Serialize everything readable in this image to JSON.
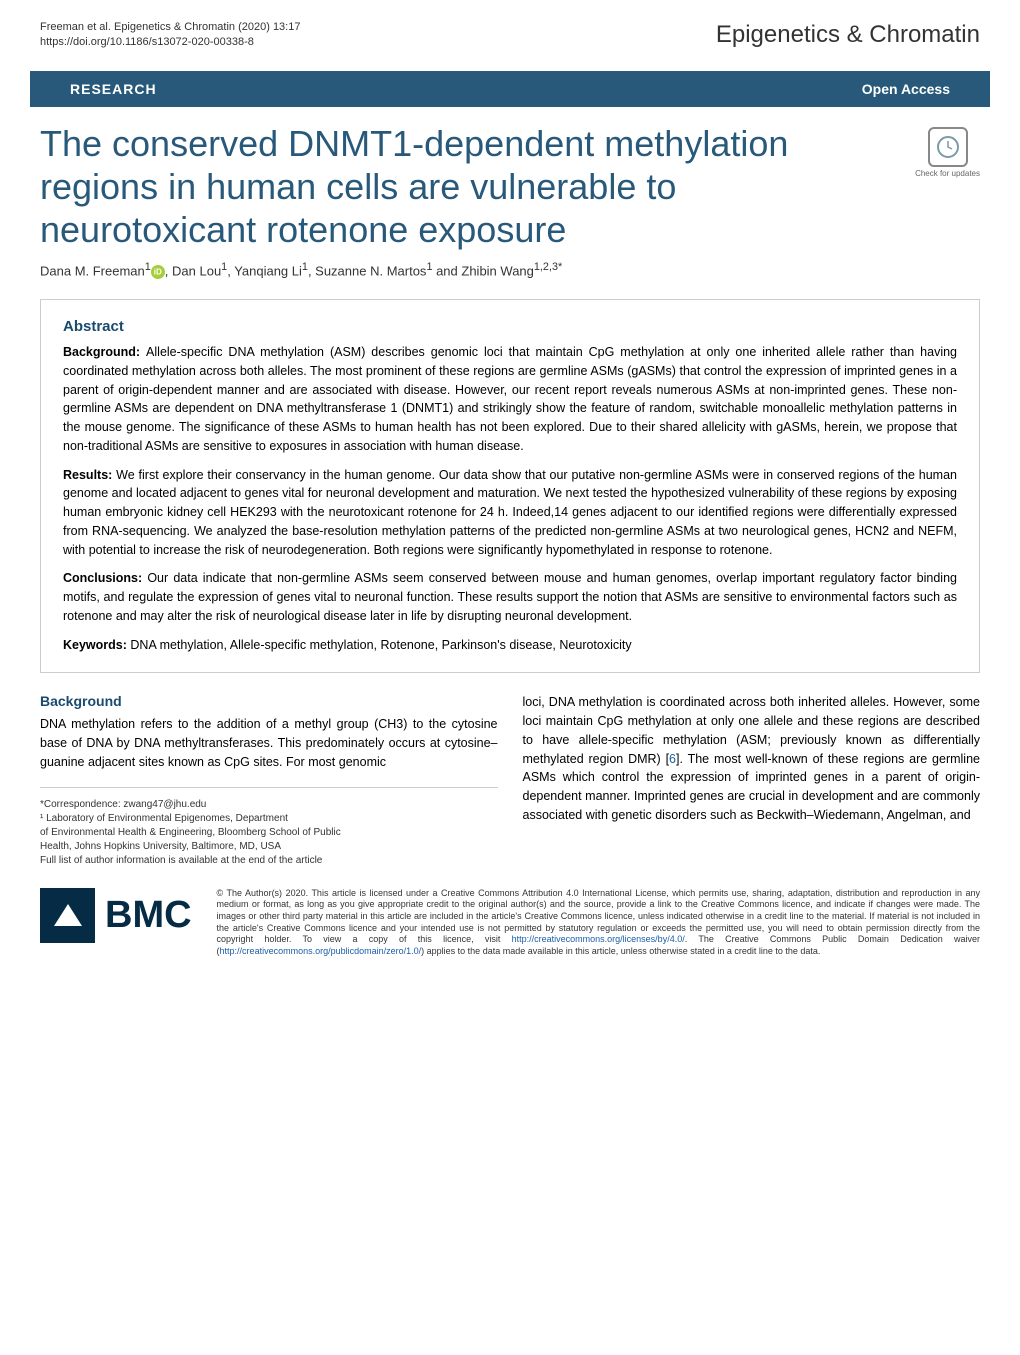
{
  "header": {
    "citation_line1": "Freeman et al. Epigenetics & Chromatin      (2020) 13:17",
    "citation_line2": "https://doi.org/10.1186/s13072-020-00338-8",
    "journal_name": "Epigenetics & Chromatin"
  },
  "research_bar": {
    "label": "RESEARCH",
    "open_access": "Open Access"
  },
  "article": {
    "title": "The conserved DNMT1-dependent methylation regions in human cells are vulnerable to neurotoxicant rotenone exposure",
    "update_label": "Check for updates",
    "authors_html": "Dana M. Freeman<sup>1</sup><span class='orcid-icon' data-name='orcid-icon' data-interactable='false'></span>, Dan Lou<sup>1</sup>, Yanqiang Li<sup>1</sup>, Suzanne N. Martos<sup>1</sup> and Zhibin Wang<sup>1,2,3*</sup>"
  },
  "abstract": {
    "heading": "Abstract",
    "background_label": "Background: ",
    "background_text": "Allele-specific DNA methylation (ASM) describes genomic loci that maintain CpG methylation at only one inherited allele rather than having coordinated methylation across both alleles. The most prominent of these regions are germline ASMs (gASMs) that control the expression of imprinted genes in a parent of origin-dependent manner and are associated with disease. However, our recent report reveals numerous ASMs at non-imprinted genes. These non-germline ASMs are dependent on DNA methyltransferase 1 (DNMT1) and strikingly show the feature of random, switchable monoallelic methylation patterns in the mouse genome. The significance of these ASMs to human health has not been explored. Due to their shared allelicity with gASMs, herein, we propose that non-traditional ASMs are sensitive to exposures in association with human disease.",
    "results_label": "Results: ",
    "results_text": "We first explore their conservancy in the human genome. Our data show that our putative non-germline ASMs were in conserved regions of the human genome and located adjacent to genes vital for neuronal development and maturation. We next tested the hypothesized vulnerability of these regions by exposing human embryonic kidney cell HEK293 with the neurotoxicant rotenone for 24 h. Indeed,14 genes adjacent to our identified regions were differentially expressed from RNA-sequencing. We analyzed the base-resolution methylation patterns of the predicted non-germline ASMs at two neurological genes, HCN2 and NEFM, with potential to increase the risk of neurodegeneration. Both regions were significantly hypomethylated in response to rotenone.",
    "conclusions_label": "Conclusions: ",
    "conclusions_text": "Our data indicate that non-germline ASMs seem conserved between mouse and human genomes, overlap important regulatory factor binding motifs, and regulate the expression of genes vital to neuronal function. These results support the notion that ASMs are sensitive to environmental factors such as rotenone and may alter the risk of neurological disease later in life by disrupting neuronal development.",
    "keywords_label": "Keywords: ",
    "keywords_text": "DNA methylation, Allele-specific methylation, Rotenone, Parkinson's disease, Neurotoxicity"
  },
  "body": {
    "background_heading": "Background",
    "col1_text": "DNA methylation refers to the addition of a methyl group (CH3) to the cytosine base of DNA by DNA methyltransferases. This predominately occurs at cytosine–guanine adjacent sites known as CpG sites. For most genomic",
    "col2_text_part1": "loci, DNA methylation is coordinated across both inherited alleles. However, some loci maintain CpG methylation at only one allele and these regions are described to have allele-specific methylation (ASM; previously known as differentially methylated region DMR) [",
    "col2_ref": "6",
    "col2_text_part2": "]. The most well-known of these regions are germline ASMs which control the expression of imprinted genes in a parent of origin-dependent manner. Imprinted genes are crucial in development and are commonly associated with genetic disorders such as Beckwith–Wiedemann, Angelman, and"
  },
  "footnote": {
    "correspondence": "*Correspondence: zwang47@jhu.edu",
    "affiliation1": "¹ Laboratory of Environmental Epigenomes, Department",
    "affiliation2": "of Environmental Health & Engineering, Bloomberg School of Public",
    "affiliation3": "Health, Johns Hopkins University, Baltimore, MD, USA",
    "full_list": "Full list of author information is available at the end of the article"
  },
  "bmc": {
    "text": "BMC"
  },
  "license": {
    "text_part1": "© The Author(s) 2020. This article is licensed under a Creative Commons Attribution 4.0 International License, which permits use, sharing, adaptation, distribution and reproduction in any medium or format, as long as you give appropriate credit to the original author(s) and the source, provide a link to the Creative Commons licence, and indicate if changes were made. The images or other third party material in this article are included in the article's Creative Commons licence, unless indicated otherwise in a credit line to the material. If material is not included in the article's Creative Commons licence and your intended use is not permitted by statutory regulation or exceeds the permitted use, you will need to obtain permission directly from the copyright holder. To view a copy of this licence, visit ",
    "link1": "http://creativecommons.org/licenses/by/4.0/",
    "text_part2": ". The Creative Commons Public Domain Dedication waiver (",
    "link2": "http://creativecommons.org/publicdomain/zero/1.0/",
    "text_part3": ") applies to the data made available in this article, unless otherwise stated in a credit line to the data."
  }
}
